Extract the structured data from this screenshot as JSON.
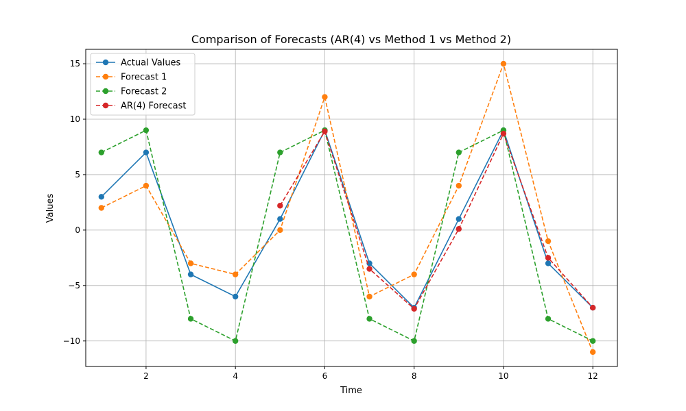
{
  "chart_data": {
    "type": "line",
    "title": "Comparison of Forecasts (AR(4) vs Method 1 vs Method 2)",
    "xlabel": "Time",
    "ylabel": "Values",
    "xlim": [
      0.65,
      12.55
    ],
    "ylim": [
      -12.3,
      16.3
    ],
    "xticks": [
      2,
      4,
      6,
      8,
      10,
      12
    ],
    "yticks": [
      -10,
      -5,
      0,
      5,
      10,
      15
    ],
    "grid": true,
    "legend_position": "top-left",
    "series": [
      {
        "name": "Actual Values",
        "color": "#1f77b4",
        "style": "solid",
        "x": [
          1,
          2,
          3,
          4,
          5,
          6,
          7,
          8,
          9,
          10,
          11,
          12
        ],
        "values": [
          3,
          7,
          -4,
          -6,
          1,
          9,
          -3,
          -7,
          1,
          9,
          -3,
          -7
        ]
      },
      {
        "name": "Forecast 1",
        "color": "#ff7f0e",
        "style": "dashed",
        "x": [
          1,
          2,
          3,
          4,
          5,
          6,
          7,
          8,
          9,
          10,
          11,
          12
        ],
        "values": [
          2,
          4,
          -3,
          -4,
          0,
          12,
          -6,
          -4,
          4,
          15,
          -1,
          -11
        ]
      },
      {
        "name": "Forecast 2",
        "color": "#2ca02c",
        "style": "dashed",
        "x": [
          1,
          2,
          3,
          4,
          5,
          6,
          7,
          8,
          9,
          10,
          11,
          12
        ],
        "values": [
          7,
          9,
          -8,
          -10,
          7,
          9,
          -8,
          -10,
          7,
          9,
          -8,
          -10
        ]
      },
      {
        "name": "AR(4) Forecast",
        "color": "#d62728",
        "style": "dashed",
        "x": [
          5,
          6,
          7,
          8,
          9,
          10,
          11,
          12
        ],
        "values": [
          2.2,
          8.9,
          -3.5,
          -7.1,
          0.1,
          8.7,
          -2.5,
          -7
        ]
      }
    ]
  }
}
